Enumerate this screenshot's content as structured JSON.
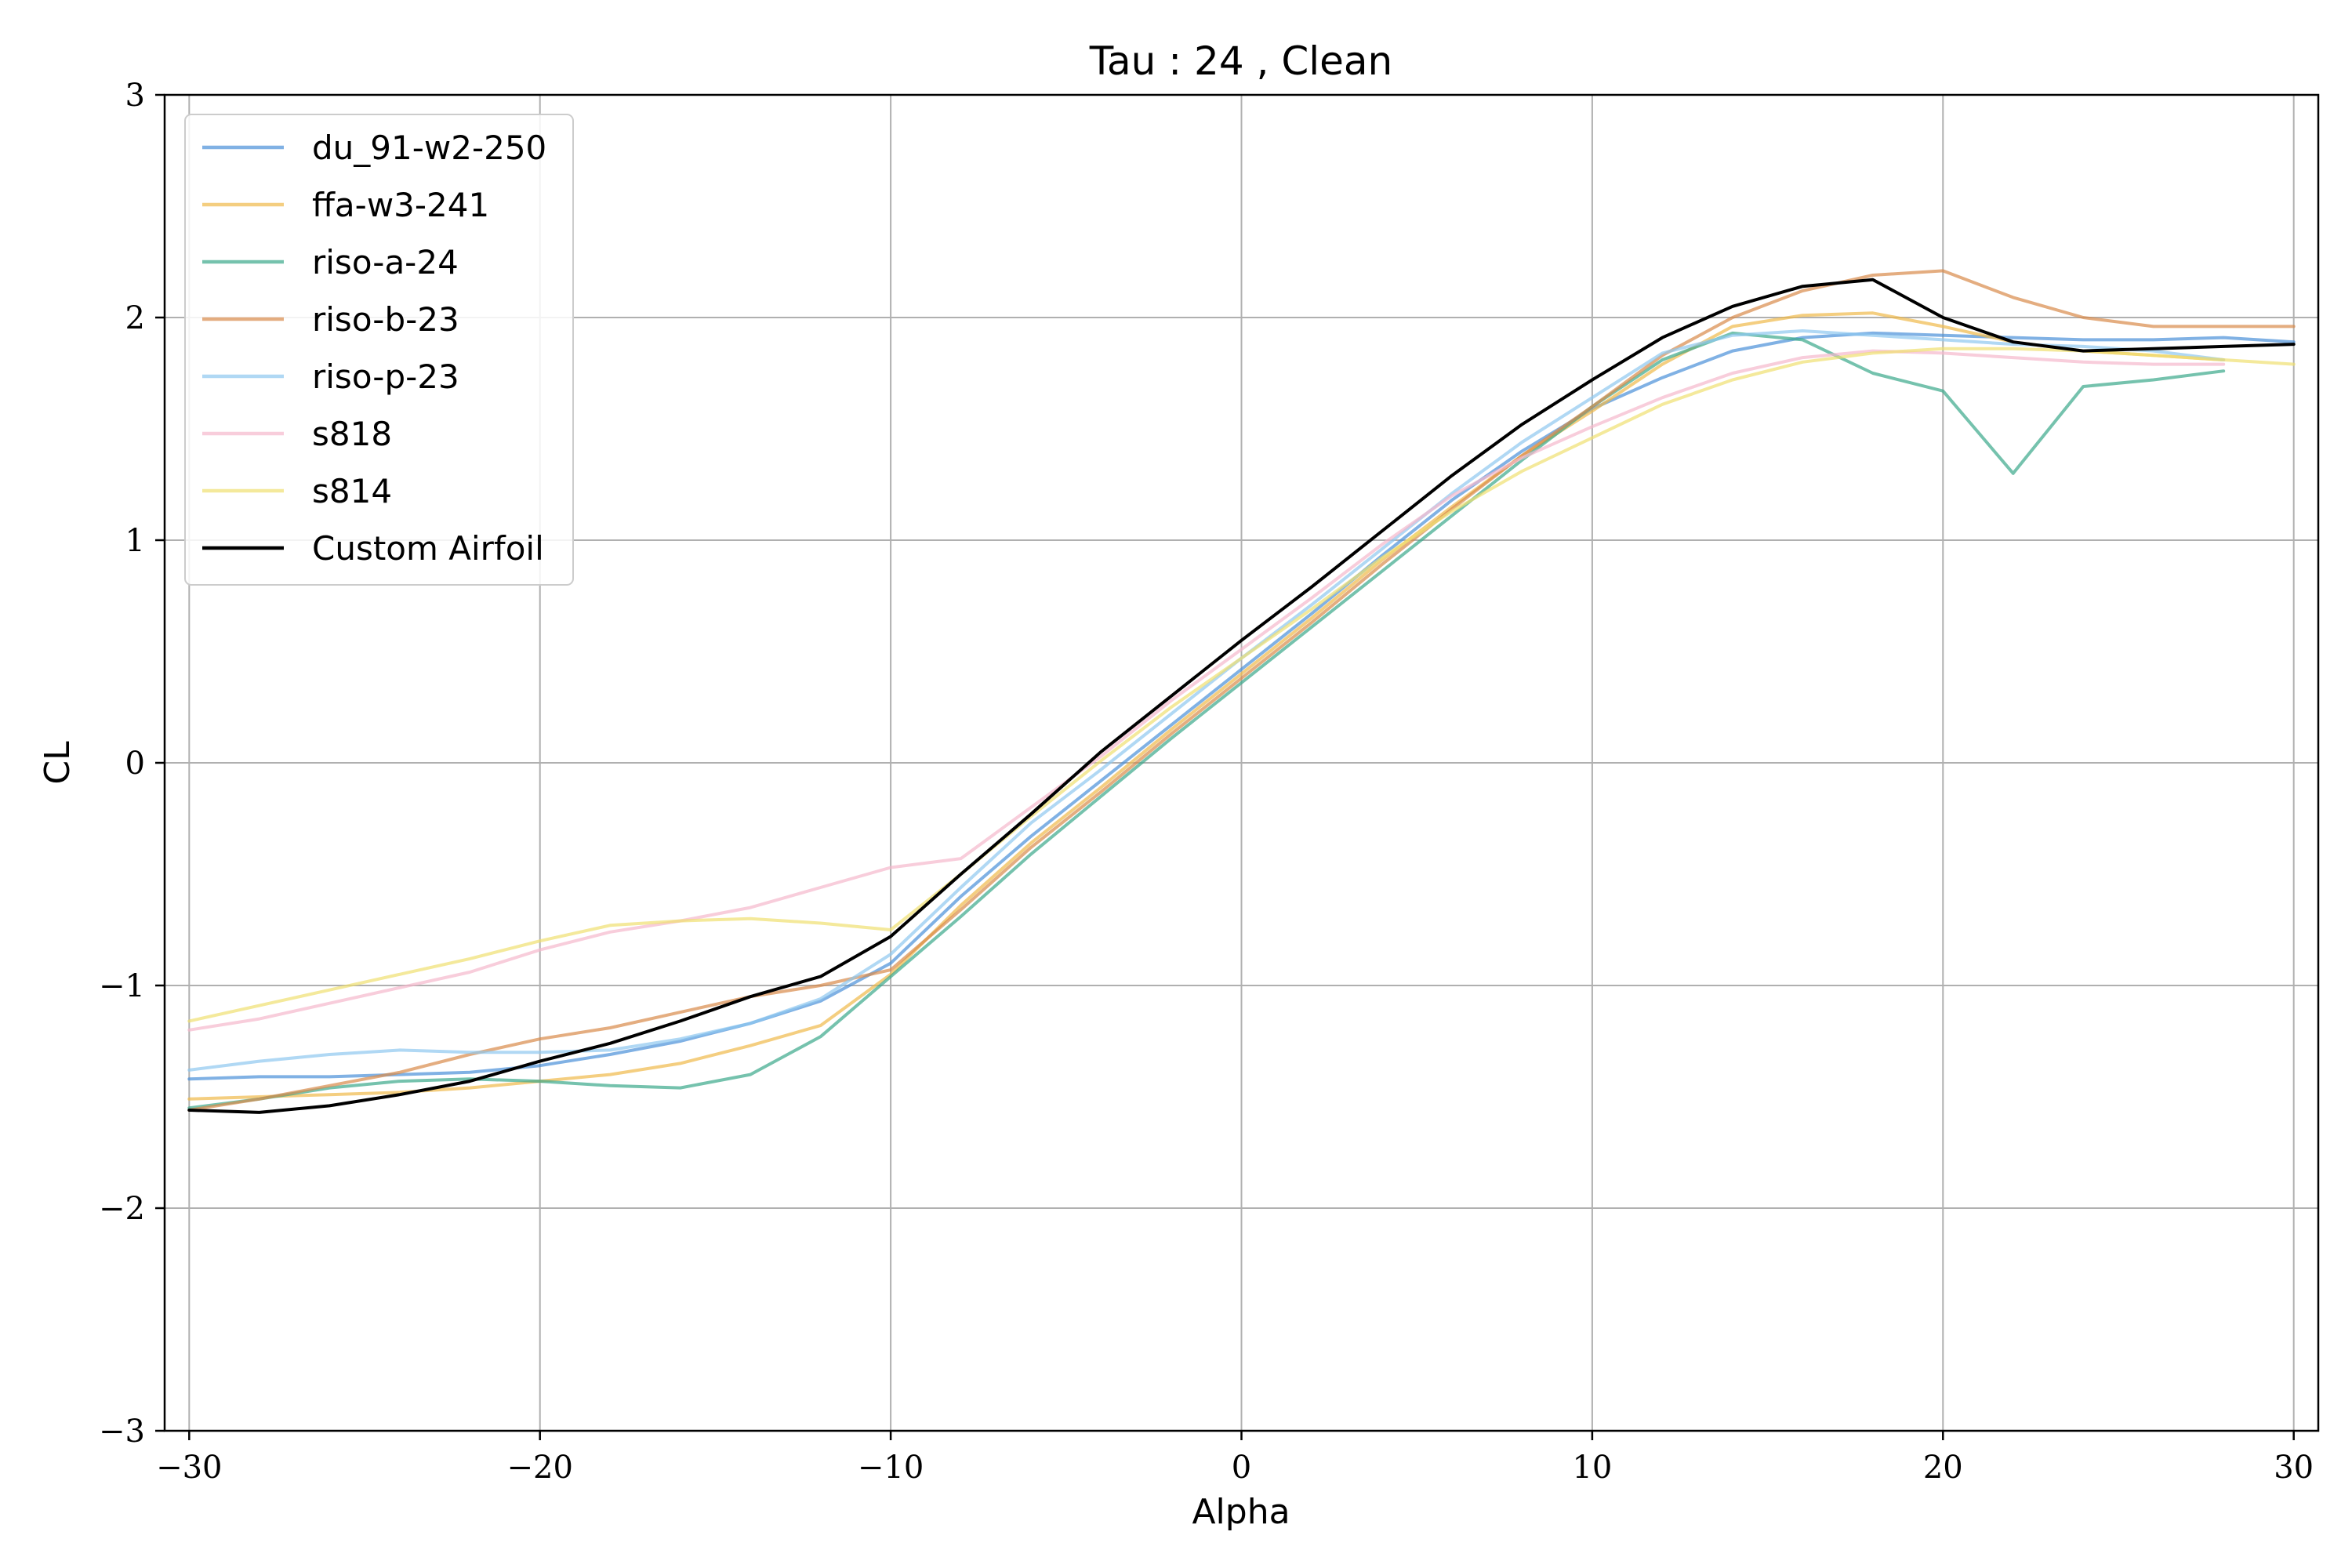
{
  "chart_data": {
    "type": "line",
    "title": "Tau : 24 , Clean",
    "xlabel": "Alpha",
    "ylabel": "CL",
    "xlim": [
      -30.7,
      30.7
    ],
    "ylim": [
      -3,
      3
    ],
    "xticks": [
      -30,
      -20,
      -10,
      0,
      10,
      20,
      30
    ],
    "yticks": [
      -3,
      -2,
      -1,
      0,
      1,
      2,
      3
    ],
    "xtick_labels": [
      "−30",
      "−20",
      "−10",
      "0",
      "10",
      "20",
      "30"
    ],
    "ytick_labels": [
      "−3",
      "−2",
      "−1",
      "0",
      "1",
      "2",
      "3"
    ],
    "grid": true,
    "legend_position": "top-left",
    "series": [
      {
        "name": "du_91-w2-250",
        "color": "#4a90d9",
        "opacity": 0.7,
        "x": [
          -30,
          -28,
          -26,
          -24,
          -22,
          -20,
          -18,
          -16,
          -14,
          -12,
          -10,
          -8,
          -6,
          -4,
          -2,
          0,
          2,
          4,
          6,
          8,
          10,
          12,
          14,
          16,
          18,
          20,
          22,
          24,
          26,
          28,
          30
        ],
        "y": [
          -1.42,
          -1.41,
          -1.41,
          -1.4,
          -1.39,
          -1.36,
          -1.31,
          -1.25,
          -1.17,
          -1.07,
          -0.9,
          -0.6,
          -0.33,
          -0.08,
          0.17,
          0.42,
          0.67,
          0.93,
          1.18,
          1.4,
          1.59,
          1.73,
          1.85,
          1.91,
          1.93,
          1.92,
          1.91,
          1.9,
          1.9,
          1.91,
          1.89
        ]
      },
      {
        "name": "ffa-w3-241",
        "color": "#f0b94a",
        "opacity": 0.7,
        "x": [
          -30,
          -28,
          -26,
          -24,
          -22,
          -20,
          -18,
          -16,
          -14,
          -12,
          -10,
          -8,
          -6,
          -4,
          -2,
          0,
          2,
          4,
          6,
          8,
          10,
          12,
          14,
          16,
          18,
          20,
          22,
          24,
          26,
          28
        ],
        "y": [
          -1.51,
          -1.5,
          -1.49,
          -1.48,
          -1.46,
          -1.43,
          -1.4,
          -1.35,
          -1.27,
          -1.18,
          -0.95,
          -0.64,
          -0.36,
          -0.11,
          0.15,
          0.4,
          0.65,
          0.91,
          1.15,
          1.38,
          1.58,
          1.79,
          1.96,
          2.01,
          2.02,
          1.96,
          1.89,
          1.85,
          1.83,
          1.81
        ]
      },
      {
        "name": "riso-a-24",
        "color": "#3aa88a",
        "opacity": 0.7,
        "x": [
          -30,
          -28,
          -26,
          -24,
          -22,
          -20,
          -18,
          -16,
          -14,
          -12,
          -10,
          -8,
          -6,
          -4,
          -2,
          0,
          2,
          4,
          6,
          8,
          10,
          12,
          14,
          16,
          18,
          20,
          22,
          24,
          26,
          28
        ],
        "y": [
          -1.55,
          -1.51,
          -1.46,
          -1.43,
          -1.42,
          -1.43,
          -1.45,
          -1.46,
          -1.4,
          -1.23,
          -0.96,
          -0.69,
          -0.41,
          -0.15,
          0.11,
          0.36,
          0.61,
          0.86,
          1.11,
          1.36,
          1.6,
          1.81,
          1.93,
          1.9,
          1.75,
          1.67,
          1.3,
          1.69,
          1.72,
          1.76
        ]
      },
      {
        "name": "riso-b-23",
        "color": "#d98a4a",
        "opacity": 0.7,
        "x": [
          -30,
          -28,
          -26,
          -24,
          -22,
          -20,
          -18,
          -16,
          -14,
          -12,
          -10,
          -8,
          -6,
          -4,
          -2,
          0,
          2,
          4,
          6,
          8,
          10,
          12,
          14,
          16,
          18,
          20,
          22,
          24,
          26,
          28,
          30
        ],
        "y": [
          -1.56,
          -1.51,
          -1.45,
          -1.39,
          -1.31,
          -1.24,
          -1.19,
          -1.12,
          -1.05,
          -1.0,
          -0.93,
          -0.66,
          -0.38,
          -0.13,
          0.13,
          0.38,
          0.63,
          0.89,
          1.14,
          1.38,
          1.6,
          1.83,
          2.0,
          2.12,
          2.19,
          2.21,
          2.09,
          2.0,
          1.96,
          1.96,
          1.96
        ]
      },
      {
        "name": "riso-p-23",
        "color": "#8ec7f0",
        "opacity": 0.7,
        "x": [
          -30,
          -28,
          -26,
          -24,
          -22,
          -20,
          -18,
          -16,
          -14,
          -12,
          -10,
          -8,
          -6,
          -4,
          -2,
          0,
          2,
          4,
          6,
          8,
          10,
          12,
          14,
          16,
          18,
          20,
          22,
          24,
          26,
          28
        ],
        "y": [
          -1.38,
          -1.34,
          -1.31,
          -1.29,
          -1.3,
          -1.3,
          -1.29,
          -1.24,
          -1.17,
          -1.06,
          -0.86,
          -0.56,
          -0.27,
          -0.03,
          0.22,
          0.47,
          0.71,
          0.96,
          1.21,
          1.44,
          1.64,
          1.84,
          1.92,
          1.94,
          1.92,
          1.9,
          1.88,
          1.87,
          1.85,
          1.81
        ]
      },
      {
        "name": "s818",
        "color": "#f5b8cc",
        "opacity": 0.7,
        "x": [
          -30,
          -28,
          -26,
          -24,
          -22,
          -20,
          -18,
          -16,
          -14,
          -12,
          -10,
          -8,
          -6,
          -4,
          -2,
          0,
          2,
          4,
          6,
          8,
          10,
          12,
          14,
          16,
          18,
          20,
          22,
          24,
          26,
          28
        ],
        "y": [
          -1.2,
          -1.15,
          -1.08,
          -1.01,
          -0.94,
          -0.84,
          -0.76,
          -0.71,
          -0.65,
          -0.56,
          -0.47,
          -0.43,
          -0.2,
          0.03,
          0.28,
          0.51,
          0.74,
          0.98,
          1.2,
          1.37,
          1.51,
          1.64,
          1.75,
          1.82,
          1.85,
          1.84,
          1.82,
          1.8,
          1.79,
          1.79
        ]
      },
      {
        "name": "s814",
        "color": "#f0e070",
        "opacity": 0.7,
        "x": [
          -30,
          -28,
          -26,
          -24,
          -22,
          -20,
          -18,
          -16,
          -14,
          -12,
          -10,
          -8,
          -6,
          -4,
          -2,
          0,
          2,
          4,
          6,
          8,
          10,
          12,
          14,
          16,
          18,
          20,
          22,
          24,
          26,
          28,
          30
        ],
        "y": [
          -1.16,
          -1.09,
          -1.02,
          -0.95,
          -0.88,
          -0.8,
          -0.73,
          -0.71,
          -0.7,
          -0.72,
          -0.75,
          -0.5,
          -0.24,
          0.01,
          0.25,
          0.47,
          0.69,
          0.92,
          1.13,
          1.31,
          1.46,
          1.61,
          1.72,
          1.8,
          1.84,
          1.86,
          1.86,
          1.85,
          1.83,
          1.81,
          1.79
        ]
      },
      {
        "name": "Custom Airfoil",
        "color": "#000000",
        "opacity": 1,
        "x": [
          -30,
          -28,
          -26,
          -24,
          -22,
          -20,
          -18,
          -16,
          -14,
          -12,
          -10,
          -8,
          -6,
          -4,
          -2,
          0,
          2,
          4,
          6,
          8,
          10,
          12,
          14,
          16,
          18,
          20,
          22,
          24,
          26,
          28,
          30
        ],
        "y": [
          -1.56,
          -1.57,
          -1.54,
          -1.49,
          -1.43,
          -1.34,
          -1.26,
          -1.16,
          -1.05,
          -0.96,
          -0.78,
          -0.5,
          -0.23,
          0.05,
          0.3,
          0.55,
          0.79,
          1.04,
          1.29,
          1.52,
          1.72,
          1.91,
          2.05,
          2.14,
          2.17,
          2.0,
          1.89,
          1.85,
          1.86,
          1.87,
          1.88
        ]
      }
    ]
  }
}
